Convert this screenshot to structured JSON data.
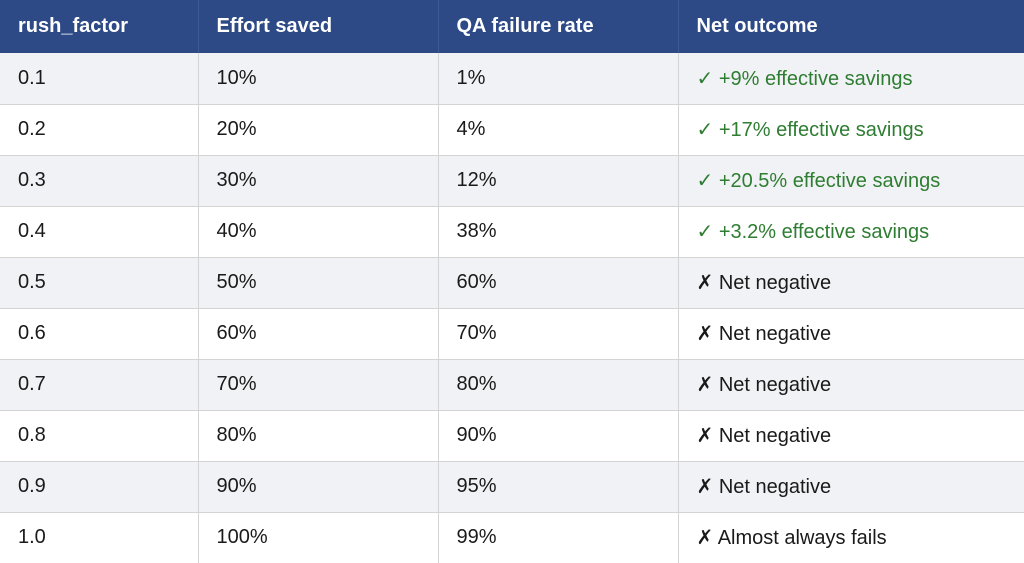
{
  "table": {
    "headers": [
      "rush_factor",
      "Effort saved",
      "QA failure rate",
      "Net outcome"
    ],
    "colors": {
      "header_bg": "#2d4a86",
      "positive": "#2e7d32"
    },
    "rows": [
      {
        "rush_factor": "0.1",
        "effort_saved": "10%",
        "qa_failure_rate": "1%",
        "net_outcome": "✓ +9% effective savings",
        "outcome": "positive"
      },
      {
        "rush_factor": "0.2",
        "effort_saved": "20%",
        "qa_failure_rate": "4%",
        "net_outcome": "✓ +17% effective savings",
        "outcome": "positive"
      },
      {
        "rush_factor": "0.3",
        "effort_saved": "30%",
        "qa_failure_rate": "12%",
        "net_outcome": "✓ +20.5% effective savings",
        "outcome": "positive"
      },
      {
        "rush_factor": "0.4",
        "effort_saved": "40%",
        "qa_failure_rate": "38%",
        "net_outcome": "✓ +3.2% effective savings",
        "outcome": "positive"
      },
      {
        "rush_factor": "0.5",
        "effort_saved": "50%",
        "qa_failure_rate": "60%",
        "net_outcome": "✗ Net negative",
        "outcome": "negative"
      },
      {
        "rush_factor": "0.6",
        "effort_saved": "60%",
        "qa_failure_rate": "70%",
        "net_outcome": "✗ Net negative",
        "outcome": "negative"
      },
      {
        "rush_factor": "0.7",
        "effort_saved": "70%",
        "qa_failure_rate": "80%",
        "net_outcome": "✗ Net negative",
        "outcome": "negative"
      },
      {
        "rush_factor": "0.8",
        "effort_saved": "80%",
        "qa_failure_rate": "90%",
        "net_outcome": "✗ Net negative",
        "outcome": "negative"
      },
      {
        "rush_factor": "0.9",
        "effort_saved": "90%",
        "qa_failure_rate": "95%",
        "net_outcome": "✗ Net negative",
        "outcome": "negative"
      },
      {
        "rush_factor": "1.0",
        "effort_saved": "100%",
        "qa_failure_rate": "99%",
        "net_outcome": "✗ Almost always fails",
        "outcome": "negative"
      }
    ]
  }
}
